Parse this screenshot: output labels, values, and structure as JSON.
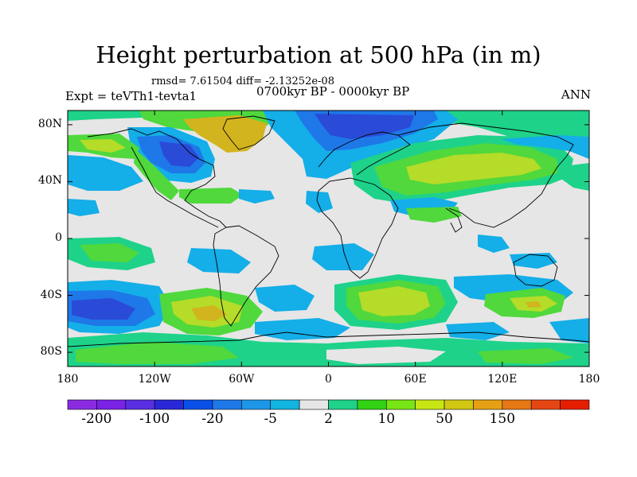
{
  "title": "Height perturbation at 500 hPa (in m)",
  "stats": "rmsd= 7.61504 diff= -2.13252e-08",
  "experiment": "Expt = teVTh1-tevta1",
  "period": "0700kyr BP - 0000kyr BP",
  "season": "ANN",
  "map": {
    "variable": "geopotential height perturbation",
    "level": "500 hPa",
    "units": "m",
    "lat_labels": [
      "80N",
      "40N",
      "0",
      "40S",
      "80S"
    ],
    "lat_values": [
      80,
      40,
      0,
      -40,
      -80
    ],
    "lon_labels": [
      "180",
      "120W",
      "60W",
      "0",
      "60E",
      "120E",
      "180"
    ],
    "lon_values": [
      -180,
      -120,
      -60,
      0,
      60,
      120,
      180
    ]
  },
  "colorbar": {
    "colors": [
      "#8a2be2",
      "#7a22e6",
      "#5a2ee2",
      "#2828d8",
      "#0a50e8",
      "#1e78e8",
      "#1e96e8",
      "#12b4e0",
      "#e6e6e6",
      "#1ed28a",
      "#32d214",
      "#78e614",
      "#c8e614",
      "#d2c814",
      "#e6a014",
      "#e67814",
      "#e64614",
      "#e61e00"
    ],
    "labels": [
      "-200",
      "-100",
      "-20",
      "-5",
      "2",
      "10",
      "50",
      "150"
    ]
  },
  "palette": {
    "deep_blue": "#2a4ad8",
    "mid_blue": "#1e78e8",
    "light_blue": "#14aee8",
    "neutral": "#e6e6e6",
    "teal": "#1ed28a",
    "green": "#50d83c",
    "yellow_green": "#b4dc28",
    "gold": "#d2b41e"
  }
}
